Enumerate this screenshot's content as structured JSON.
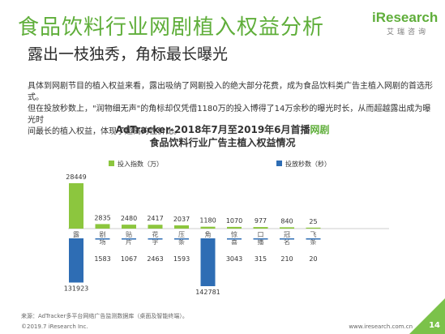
{
  "header": {
    "title": "食品饮料行业网剧植入权益分析",
    "subtitle": "露出一枝独秀，角标最长曝光",
    "logo_text": "iResearch",
    "logo_sub": "艾瑞咨询"
  },
  "paragraph": [
    "具体到网剧节目的植入权益来看，露出吸纳了网剧投入的绝大部分花费，成为食品饮料类广告主植入网剧的首选形式。",
    "但在投放秒数上，\"润物细无声\"的角标却仅凭借1180万的投入博得了14万余秒的曝光时长，从而超越露出成为曝光时",
    "间最长的植入权益，体现了超高的性价比。"
  ],
  "chart_title": {
    "line1_prefix": "AdTracker-2018年7月至2019年6月首播",
    "line1_highlight": "网剧",
    "line2": "食品饮料行业广告主植入权益情况"
  },
  "chart_data": {
    "type": "bar",
    "categories": [
      "露出",
      "剧场",
      "贴片",
      "花字",
      "压条",
      "角标",
      "惊喜",
      "口播",
      "冠名",
      "飞条"
    ],
    "series": [
      {
        "name": "投入指数（万）",
        "values": [
          28449,
          2835,
          2480,
          2417,
          2037,
          1180,
          1070,
          977,
          840,
          25
        ]
      },
      {
        "name": "投放秒数（秒）",
        "values": [
          131923,
          1583,
          1067,
          2463,
          1593,
          142781,
          3043,
          315,
          210,
          20
        ]
      }
    ]
  },
  "colors": {
    "green": "#8cc63e",
    "blue": "#2e6db4",
    "title_green": "#5fae3a"
  },
  "footer": {
    "source": "来源：AdTracker多平台网络广告监测数据库（桌面及智能终端）。",
    "copyright": "©2019.7 iResearch Inc.",
    "site": "www.iresearch.com.cn",
    "page_number": "14"
  }
}
